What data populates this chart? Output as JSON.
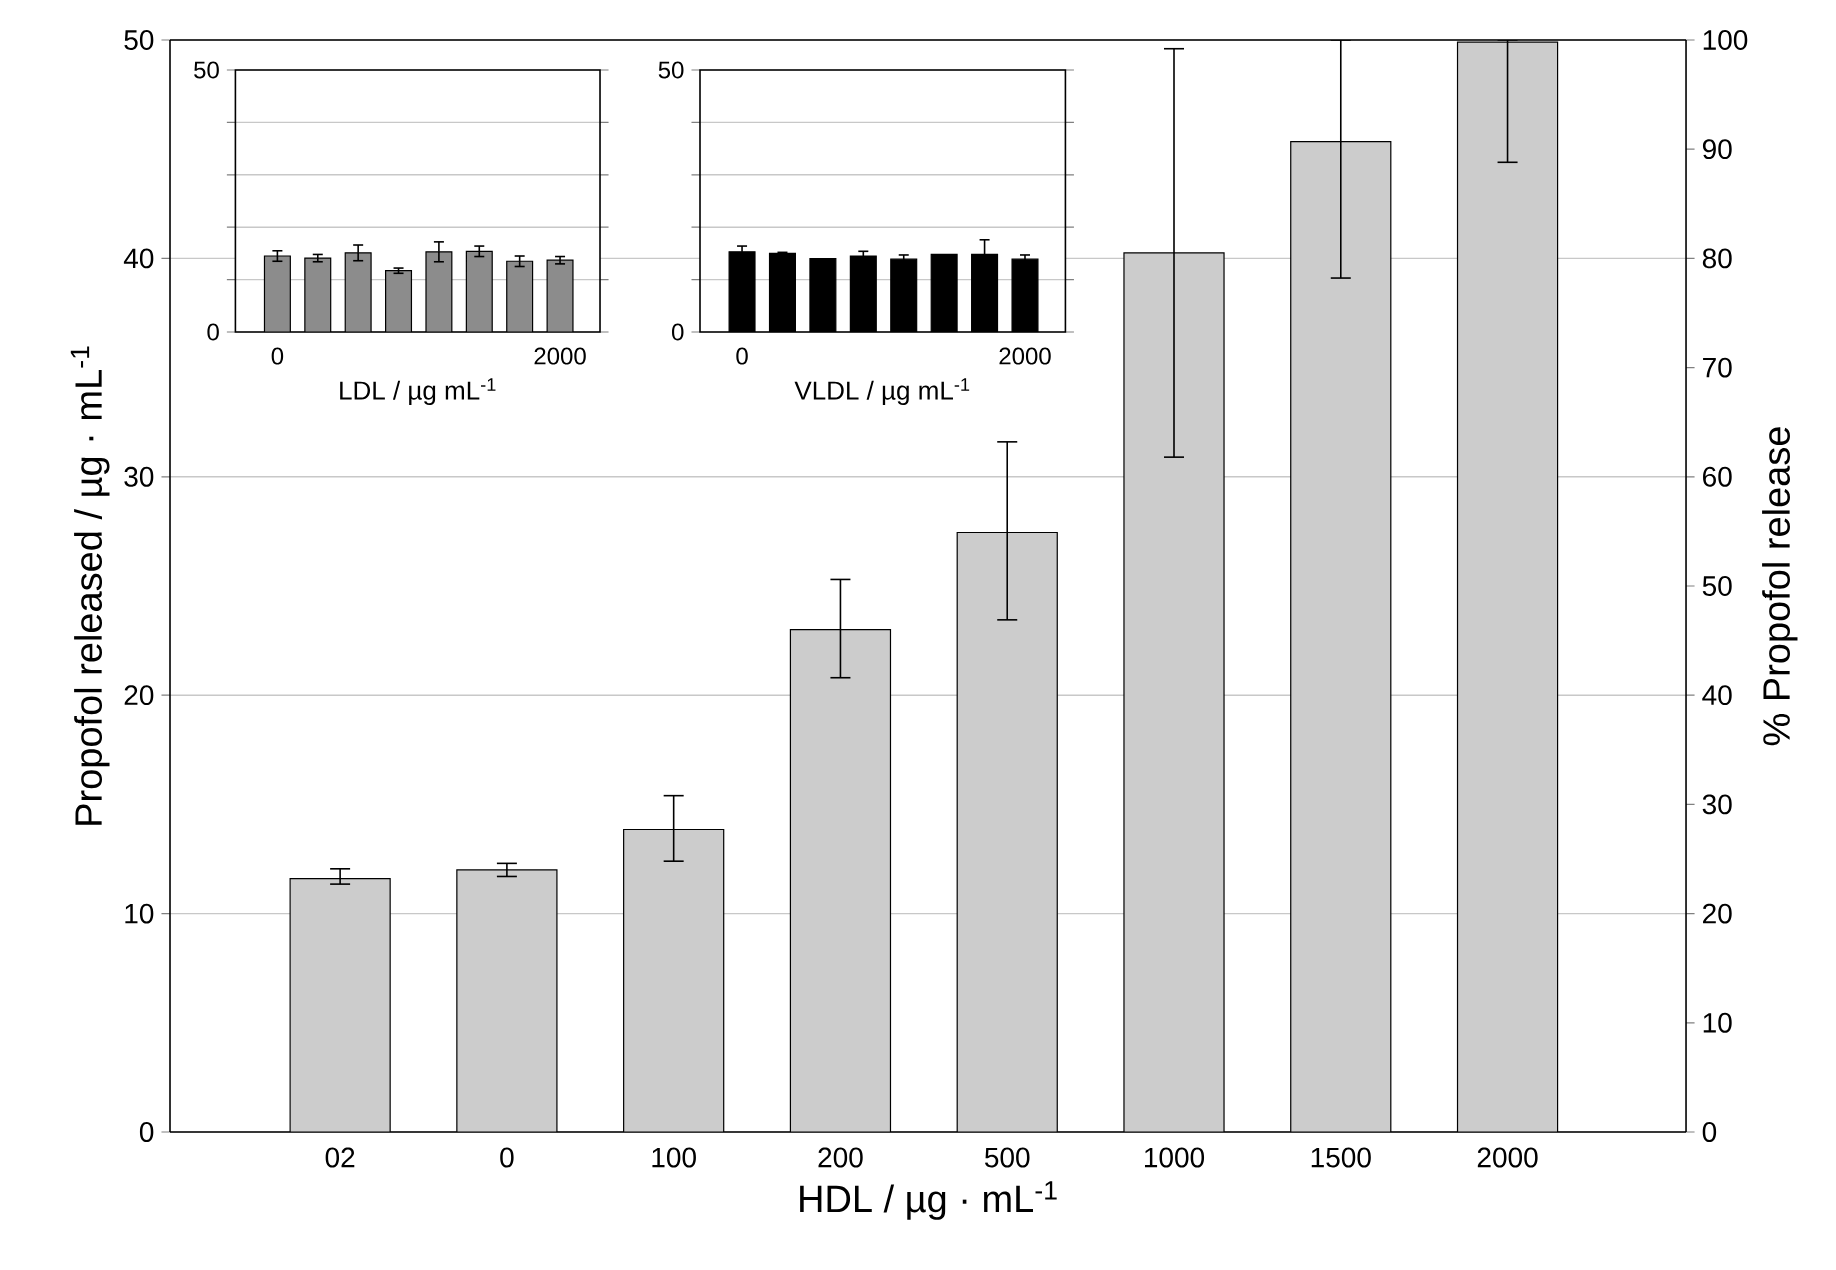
{
  "chart_data": [
    {
      "type": "bar",
      "categories": [
        "02",
        "0",
        "100",
        "200",
        "500",
        "1000",
        "1500",
        "2000"
      ],
      "values": [
        11.6,
        12.0,
        13.85,
        23.0,
        27.45,
        40.25,
        45.35,
        49.9
      ],
      "errors": [
        [
          11.35,
          12.05
        ],
        [
          11.7,
          12.3
        ],
        [
          12.4,
          15.4
        ],
        [
          20.8,
          25.3
        ],
        [
          23.45,
          31.6
        ],
        [
          30.9,
          49.6
        ],
        [
          39.1,
          50
        ],
        [
          44.4,
          50
        ]
      ],
      "color": "#cccccc",
      "ylim": [
        0,
        50
      ],
      "yticks": [
        0,
        10,
        20,
        30,
        40,
        50
      ],
      "y2lim": [
        0,
        100
      ],
      "y2ticks": [
        0,
        10,
        20,
        30,
        40,
        50,
        60,
        70,
        80,
        90,
        100
      ],
      "xlabel": "HDL / µg · mL$^{-1}$",
      "ylabel": "Propofol released / µg · mL$^{-1}$",
      "y2label": "% Propofol release",
      "grid": "y"
    },
    {
      "type": "bar",
      "categories": [
        "0",
        null,
        null,
        null,
        null,
        null,
        null,
        "2000"
      ],
      "values": [
        14.5,
        14.1,
        15.1,
        11.7,
        15.3,
        15.4,
        13.5,
        13.7
      ],
      "errors": [
        1.0,
        0.7,
        1.5,
        0.5,
        1.9,
        1.0,
        1.0,
        0.7
      ],
      "color": "#8c8c8c",
      "ylim": [
        0,
        50
      ],
      "yticks": [
        0,
        {
          "value": 10,
          "label": null
        },
        {
          "value": 20,
          "label": null
        },
        {
          "value": 30,
          "label": null
        },
        {
          "value": 40,
          "label": null
        },
        50
      ],
      "xlabel": "LDL / µg mL$^{-1}$",
      "grid": "y"
    },
    {
      "type": "bar",
      "categories": [
        "0",
        null,
        null,
        null,
        null,
        null,
        null,
        "2000"
      ],
      "values": [
        15.3,
        15.0,
        14.0,
        14.5,
        13.9,
        14.8,
        14.8,
        13.9
      ],
      "errors": [
        1.1,
        0.2,
        null,
        0.9,
        0.8,
        null,
        2.8,
        0.8
      ],
      "color": "#000000",
      "ylim": [
        0,
        50
      ],
      "yticks": [
        0,
        {
          "value": 10,
          "label": null
        },
        {
          "value": 20,
          "label": null
        },
        {
          "value": 30,
          "label": null
        },
        {
          "value": 40,
          "label": null
        },
        50
      ],
      "xlabel": "VLDL / µg mL$^{-1}$",
      "grid": "y"
    }
  ]
}
